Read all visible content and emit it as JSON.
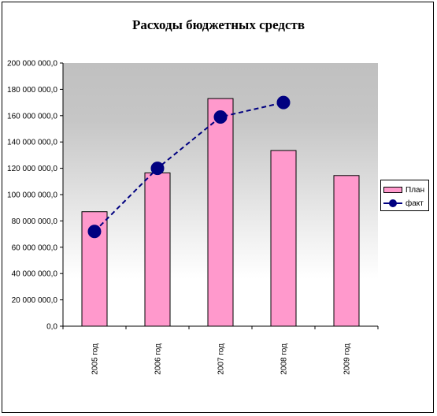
{
  "chart_data": {
    "type": "bar",
    "title": "Расходы бюджетных средств",
    "categories": [
      "2005 год",
      "2006 год",
      "2007 год",
      "2008 год",
      "2009 год"
    ],
    "series": [
      {
        "name": "План",
        "type": "bar",
        "color": "#ff99cc",
        "values": [
          87000000,
          116500000,
          173000000,
          133500000,
          114500000
        ]
      },
      {
        "name": "факт",
        "type": "line",
        "color": "#000080",
        "line_style": "dashed",
        "marker": "circle",
        "values": [
          72000000,
          120000000,
          159000000,
          170000000,
          null
        ]
      }
    ],
    "ylim": [
      0,
      200000000
    ],
    "y_ticks": [
      "0,0",
      "20 000 000,0",
      "40 000 000,0",
      "60 000 000,0",
      "80 000 000,0",
      "100 000 000,0",
      "120 000 000,0",
      "140 000 000,0",
      "160 000 000,0",
      "180 000 000,0",
      "200 000 000,0"
    ],
    "y_tick_values": [
      0,
      20000000,
      40000000,
      60000000,
      80000000,
      100000000,
      120000000,
      140000000,
      160000000,
      180000000,
      200000000
    ],
    "xlabel": "",
    "ylabel": "",
    "grid": false,
    "legend_position": "right",
    "plot_background": "gradient-gray-to-white"
  }
}
